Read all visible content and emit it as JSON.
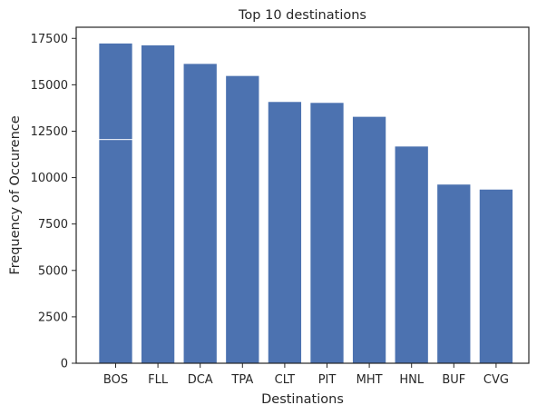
{
  "chart_data": {
    "type": "bar",
    "title": "Top 10 destinations",
    "xlabel": "Destinations",
    "ylabel": "Frequency of Occurence",
    "categories": [
      "BOS",
      "FLL",
      "DCA",
      "TPA",
      "CLT",
      "PIT",
      "MHT",
      "HNL",
      "BUF",
      "CVG"
    ],
    "values": [
      17250,
      17150,
      16150,
      15500,
      14100,
      14050,
      13300,
      11700,
      9650,
      9380
    ],
    "overlay_values": [
      12050,
      0,
      0,
      0,
      0,
      0,
      0,
      0,
      0,
      0
    ],
    "ylim": [
      0,
      18100
    ],
    "yticks": [
      0,
      2500,
      5000,
      7500,
      10000,
      12500,
      15000,
      17500
    ],
    "grid": false,
    "bar_color": "#4c72b0",
    "edge_color": "#ffffff"
  }
}
